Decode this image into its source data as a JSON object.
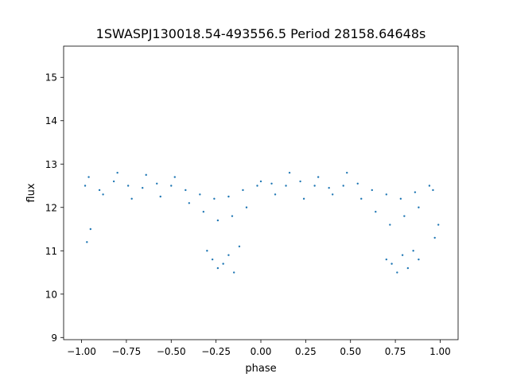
{
  "chart_data": {
    "type": "scatter",
    "title": "1SWASPJ130018.54-493556.5 Period 28158.64648s",
    "xlabel": "phase",
    "ylabel": "flux",
    "xlim": [
      -1.1,
      1.1
    ],
    "ylim": [
      8.95,
      15.72
    ],
    "xticks": [
      -1.0,
      -0.75,
      -0.5,
      -0.25,
      0.0,
      0.25,
      0.5,
      0.75,
      1.0
    ],
    "xtick_labels": [
      "−1.00",
      "−0.75",
      "−0.50",
      "−0.25",
      "0.00",
      "0.25",
      "0.50",
      "0.75",
      "1.00"
    ],
    "yticks": [
      9,
      10,
      11,
      12,
      13,
      14,
      15
    ],
    "ytick_labels": [
      "9",
      "10",
      "11",
      "12",
      "13",
      "14",
      "15"
    ],
    "grid": false,
    "marker_color": "#1f77b4",
    "series": [
      {
        "x": [
          -0.98,
          -0.9,
          -0.82,
          -0.74,
          -0.66,
          -0.58,
          -0.5,
          -0.42,
          -0.34,
          -0.26,
          -0.18,
          -0.1,
          -0.02,
          0.06,
          0.14,
          0.22,
          0.3,
          0.38,
          0.46,
          0.54,
          0.62,
          0.7,
          0.78,
          0.86,
          0.94,
          -0.96,
          -0.88,
          -0.8,
          -0.72,
          -0.64,
          -0.56,
          -0.48,
          -0.4,
          -0.32,
          -0.24,
          -0.16,
          -0.08,
          0.0,
          0.08,
          0.16,
          0.24,
          0.32,
          0.4,
          0.48,
          0.56,
          0.64,
          0.72,
          0.8,
          0.88,
          0.96,
          -0.3,
          -0.27,
          -0.24,
          -0.21,
          -0.18,
          -0.15,
          -0.12,
          0.7,
          0.73,
          0.76,
          0.79,
          0.82,
          0.85,
          0.88,
          -0.97,
          -0.95,
          0.97,
          0.99
        ],
        "y": [
          12.5,
          12.4,
          12.6,
          12.5,
          12.45,
          12.55,
          12.5,
          12.4,
          12.3,
          12.2,
          12.25,
          12.4,
          12.5,
          12.55,
          12.5,
          12.6,
          12.5,
          12.45,
          12.5,
          12.55,
          12.4,
          12.3,
          12.2,
          12.35,
          12.5,
          12.7,
          12.3,
          12.8,
          12.2,
          12.75,
          12.25,
          12.7,
          12.1,
          11.9,
          11.7,
          11.8,
          12.0,
          12.6,
          12.3,
          12.8,
          12.2,
          12.7,
          12.3,
          12.8,
          12.2,
          11.9,
          11.6,
          11.8,
          12.0,
          12.4,
          11.0,
          10.8,
          10.6,
          10.7,
          10.9,
          10.5,
          11.1,
          10.8,
          10.7,
          10.5,
          10.9,
          10.6,
          11.0,
          10.8,
          11.2,
          11.5,
          11.3,
          11.6
        ]
      }
    ]
  }
}
